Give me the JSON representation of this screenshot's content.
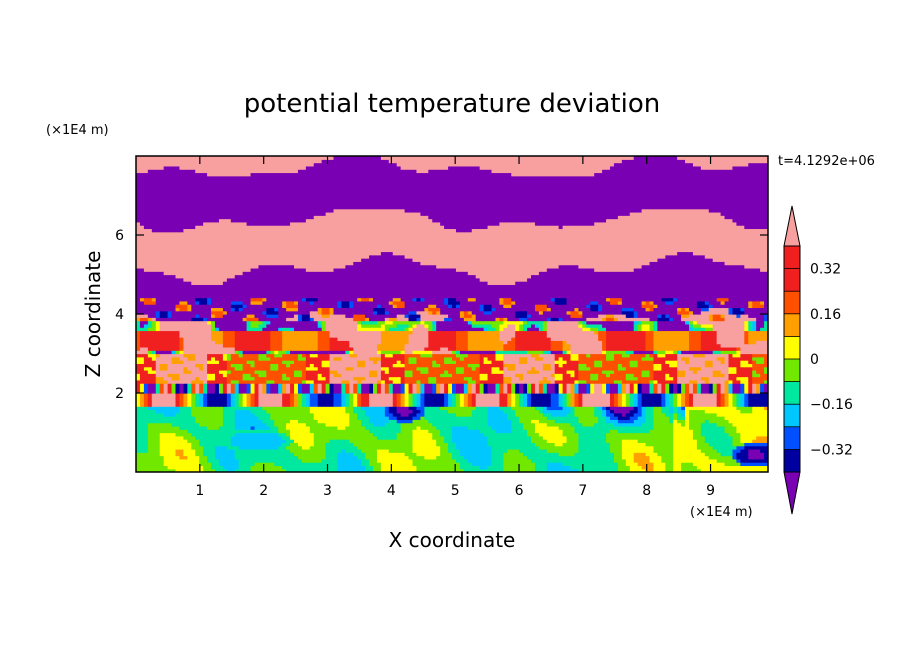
{
  "chart_data": {
    "type": "heatmap",
    "title": "potential temperature deviation",
    "time_label": "t=4.1292e+06",
    "xlabel": "X coordinate",
    "ylabel": "Z coordinate",
    "x_unit": "(×1E4 m)",
    "y_unit": "(×1E4 m)",
    "xlim": [
      0,
      9.9
    ],
    "ylim": [
      0,
      8
    ],
    "x_ticks": [
      1,
      2,
      3,
      4,
      5,
      6,
      7,
      8,
      9
    ],
    "y_ticks": [
      2,
      4,
      6
    ],
    "x_tick_labels": [
      "1",
      "2",
      "3",
      "4",
      "5",
      "6",
      "7",
      "8",
      "9"
    ],
    "y_tick_labels": [
      "2",
      "4",
      "6"
    ],
    "colorbar": {
      "levels": [
        -0.4,
        -0.32,
        -0.24,
        -0.16,
        -0.08,
        0,
        0.08,
        0.16,
        0.24,
        0.32,
        0.4
      ],
      "labeled_levels": [
        -0.32,
        -0.16,
        0,
        0.16,
        0.32
      ],
      "labels": [
        "−0.32",
        "−0.16",
        "0",
        "0.16",
        "0.32"
      ],
      "colors": [
        "#7a00b4",
        "#0000a0",
        "#0050ff",
        "#00c8ff",
        "#00e8a0",
        "#70e800",
        "#ffff00",
        "#ffa000",
        "#ff5000",
        "#f02020",
        "#f8a0a0"
      ],
      "extend": "both"
    }
  }
}
